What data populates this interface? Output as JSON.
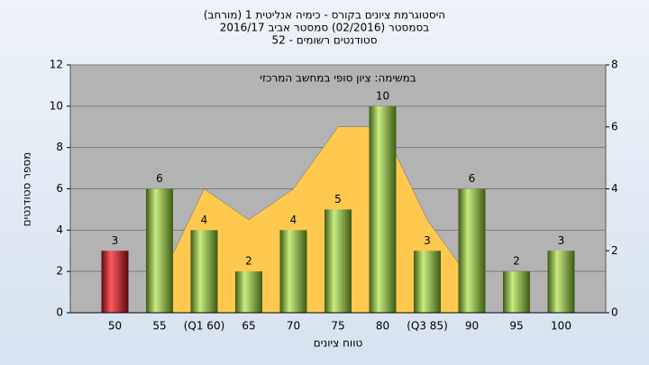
{
  "chart_data": {
    "type": "bar",
    "title": "היסטוגרמת ציונים בקורס - כימיה אנליטית 1 (מורחב)",
    "subtitle": "בסמסטר (02/2016) סמסטר אביב 2016/17",
    "subtitle2": "סטודנטים רשומים - 52",
    "annotation": "במשימה: ציון סופי במחשב המרכזי",
    "x_label": "טווח ציונים",
    "y_label": "מספר סטודנטים",
    "categories": [
      "50",
      "55",
      "(Q1 60)",
      "65",
      "70",
      "75",
      "80",
      "(Q3 85)",
      "90",
      "95",
      "100"
    ],
    "values": [
      3,
      6,
      4,
      2,
      4,
      5,
      10,
      3,
      6,
      2,
      3
    ],
    "colors": [
      "#e0202a",
      "#8cbf3c",
      "#8cbf3c",
      "#8cbf3c",
      "#8cbf3c",
      "#8cbf3c",
      "#8cbf3c",
      "#8cbf3c",
      "#8cbf3c",
      "#8cbf3c",
      "#8cbf3c"
    ],
    "area": {
      "color": "#ffc94f",
      "axis": "y2",
      "values": [
        null,
        1,
        4,
        3,
        4,
        6,
        6,
        3,
        1,
        null,
        null
      ]
    },
    "ylim": [
      0,
      12
    ],
    "yticks": [
      0,
      2,
      4,
      6,
      8,
      10,
      12
    ],
    "y2lim": [
      0,
      8
    ],
    "y2ticks": [
      0,
      2,
      4,
      6,
      8
    ],
    "grid": true
  }
}
